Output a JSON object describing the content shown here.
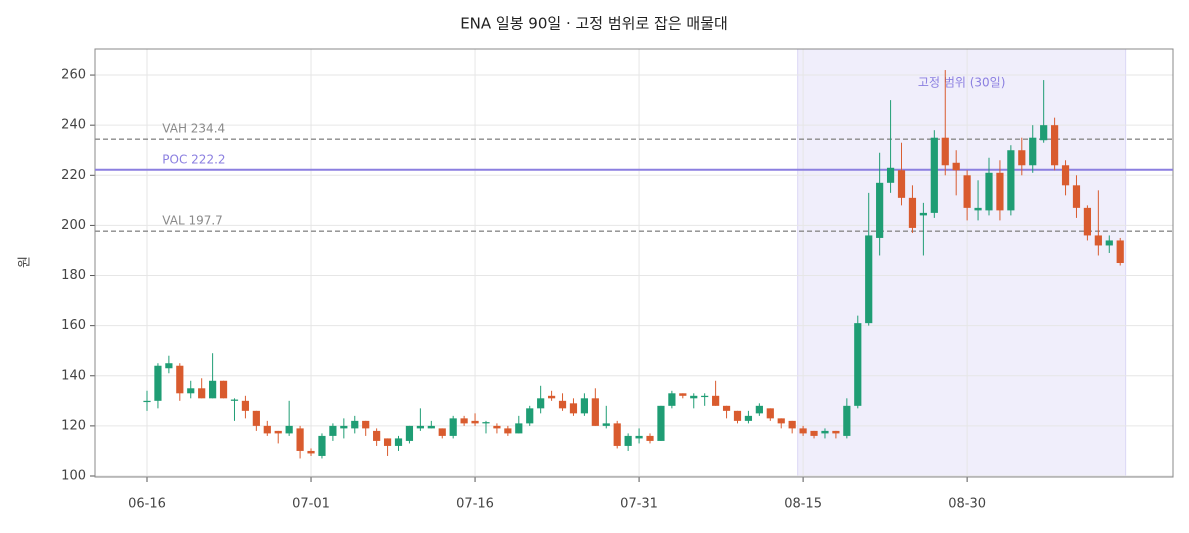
{
  "chart_data": {
    "type": "candlestick",
    "title": "ENA 일봉 90일 · 고정 범위로 잡은 매물대",
    "ylabel": "원",
    "categories": [
      "06-16",
      "06-17",
      "06-18",
      "06-19",
      "06-20",
      "06-21",
      "06-22",
      "06-23",
      "06-24",
      "06-25",
      "06-26",
      "06-27",
      "06-28",
      "06-29",
      "06-30",
      "07-01",
      "07-02",
      "07-03",
      "07-04",
      "07-05",
      "07-06",
      "07-07",
      "07-08",
      "07-09",
      "07-10",
      "07-11",
      "07-12",
      "07-13",
      "07-14",
      "07-15",
      "07-16",
      "07-17",
      "07-18",
      "07-19",
      "07-20",
      "07-21",
      "07-22",
      "07-23",
      "07-24",
      "07-25",
      "07-26",
      "07-27",
      "07-28",
      "07-29",
      "07-30",
      "07-31",
      "08-01",
      "08-02",
      "08-03",
      "08-04",
      "08-05",
      "08-06",
      "08-07",
      "08-08",
      "08-09",
      "08-10",
      "08-11",
      "08-12",
      "08-13",
      "08-14",
      "08-15",
      "08-16",
      "08-17",
      "08-18",
      "08-19",
      "08-20",
      "08-21",
      "08-22",
      "08-23",
      "08-24",
      "08-25",
      "08-26",
      "08-27",
      "08-28",
      "08-29",
      "08-30",
      "08-31",
      "09-01",
      "09-02",
      "09-03",
      "09-04",
      "09-05",
      "09-06",
      "09-07",
      "09-08",
      "09-09",
      "09-10",
      "09-11",
      "09-12",
      "09-13"
    ],
    "open": [
      129.5,
      130,
      143,
      144,
      133,
      135,
      131,
      138,
      130,
      130,
      126,
      120,
      118,
      117,
      119,
      110,
      108,
      116,
      119,
      119,
      122,
      118,
      115,
      112,
      114,
      119,
      119,
      119,
      116,
      123,
      122,
      121,
      120,
      119,
      117,
      121,
      127,
      132,
      130,
      129,
      125,
      131,
      120,
      121,
      112,
      115,
      116,
      114,
      128,
      133,
      131,
      131.5,
      132,
      128,
      126,
      122,
      125,
      127,
      123,
      122,
      119,
      118,
      117,
      118,
      116,
      128,
      161,
      195,
      217,
      222,
      211,
      204,
      205,
      235,
      225,
      220,
      206,
      206,
      221,
      206,
      230,
      224,
      234,
      240,
      224,
      216,
      207,
      196,
      192,
      194
    ],
    "high": [
      134,
      145,
      148,
      145,
      138,
      139,
      149,
      138,
      131,
      132,
      126,
      122,
      118,
      130,
      120,
      111,
      117,
      121,
      123,
      124,
      122,
      119,
      115,
      116,
      120,
      127,
      122,
      119,
      124,
      124,
      125,
      122,
      121,
      120,
      124,
      128,
      136,
      134,
      133,
      131,
      133,
      135,
      128,
      122,
      117,
      119,
      117,
      128,
      134,
      133,
      133,
      133,
      138,
      128,
      126,
      126,
      129,
      127,
      123,
      122,
      120,
      118,
      119,
      118,
      131,
      164,
      213,
      229,
      250,
      233,
      216,
      209,
      238,
      262,
      230,
      222,
      218,
      227,
      226,
      232,
      235,
      240,
      258,
      243,
      226,
      220,
      208,
      214,
      196,
      195
    ],
    "low": [
      126,
      127,
      141,
      130,
      131,
      131,
      131,
      131,
      122,
      123,
      118,
      116,
      113,
      116,
      107,
      108,
      107,
      114,
      115,
      117,
      116,
      112,
      108,
      110,
      113,
      118,
      119,
      115,
      115,
      120,
      120,
      117,
      117,
      116,
      117,
      120,
      125,
      130,
      126,
      124,
      124,
      120,
      119,
      111,
      110,
      113,
      113,
      114,
      127,
      131,
      127,
      128,
      128,
      123,
      121,
      121,
      124,
      122,
      119,
      117,
      116,
      115,
      115,
      115,
      115,
      127,
      160,
      188,
      213,
      208,
      197,
      188,
      203,
      220,
      212,
      202,
      202,
      204,
      202,
      204,
      220,
      221,
      233,
      222,
      212,
      203,
      194,
      188,
      189,
      184
    ],
    "close": [
      130,
      144,
      145,
      133,
      135,
      131,
      138,
      131,
      130.5,
      126,
      120,
      117,
      117,
      120,
      110,
      109,
      116,
      120,
      120,
      122,
      119,
      114,
      112,
      115,
      120,
      120,
      120,
      116,
      123,
      121,
      121,
      121.5,
      119,
      117,
      121,
      127,
      131,
      131,
      127,
      125,
      131,
      120,
      121,
      112,
      116,
      116,
      114,
      128,
      133,
      132,
      132,
      132,
      128,
      126,
      122,
      124,
      128,
      123,
      121,
      119,
      117,
      116,
      118,
      117,
      128,
      161,
      196,
      217,
      223,
      211,
      199,
      205,
      235,
      224,
      222,
      207,
      207,
      221,
      206,
      230,
      224,
      235,
      240,
      224,
      216,
      207,
      196,
      192,
      194,
      185
    ],
    "up_color": "#1f9d74",
    "down_color": "#d95b2e",
    "ylim": [
      99.6,
      270.4
    ],
    "yticks": [
      100,
      120,
      140,
      160,
      180,
      200,
      220,
      240,
      260
    ],
    "xticks": [
      "06-16",
      "07-01",
      "07-16",
      "07-31",
      "08-15",
      "08-30"
    ],
    "grid": true,
    "levels": [
      {
        "value": 234.4,
        "label": "VAH 234.4",
        "color": "#8a8a8a",
        "style": "dashed"
      },
      {
        "value": 222.2,
        "label": "POC 222.2",
        "color": "#8b7fe0",
        "style": "solid"
      },
      {
        "value": 197.7,
        "label": "VAL 197.7",
        "color": "#8a8a8a",
        "style": "dashed"
      }
    ],
    "range": {
      "label": "고정 범위 (30일)",
      "start": "08-15",
      "end": "09-13",
      "color": "#8b7fe0"
    }
  }
}
